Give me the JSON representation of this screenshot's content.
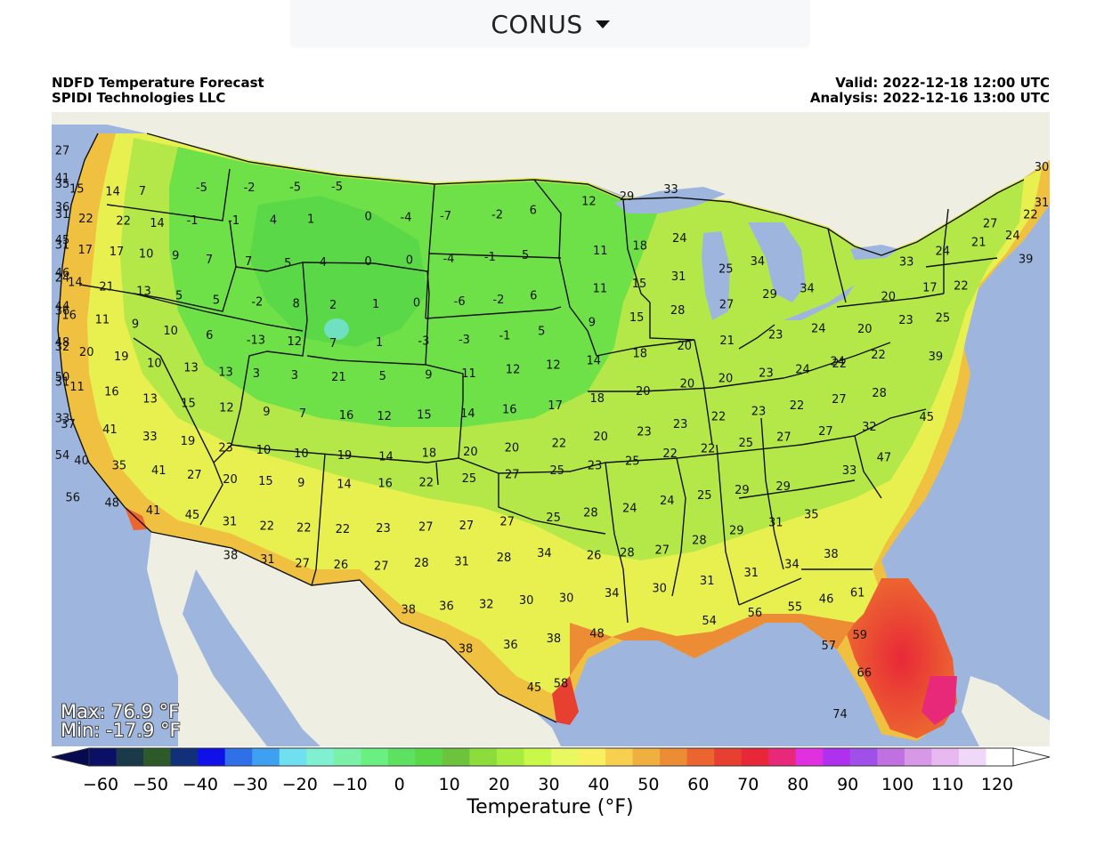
{
  "region_selector": {
    "selected": "CONUS"
  },
  "header": {
    "title": "NDFD Temperature Forecast",
    "producer": "SPIDI Technologies LLC",
    "valid": "Valid: 2022-12-18 12:00 UTC",
    "analysis": "Analysis: 2022-12-16 13:00 UTC"
  },
  "stats": {
    "max": "Max: 76.9 °F",
    "min": "Min: -17.9 °F"
  },
  "colorbar": {
    "title": "Temperature (°F)",
    "ticks": [
      "−60",
      "−50",
      "−40",
      "−30",
      "−20",
      "−10",
      "0",
      "10",
      "20",
      "30",
      "40",
      "50",
      "60",
      "70",
      "80",
      "90",
      "100",
      "110",
      "120"
    ],
    "colors": [
      "#0a1066",
      "#1a3a4a",
      "#2e5a2a",
      "#10307a",
      "#1010e8",
      "#2f6fe8",
      "#3f9ff0",
      "#6fe0f0",
      "#7ff0d0",
      "#7af0a8",
      "#6af080",
      "#5ee060",
      "#5ad848",
      "#6cc43c",
      "#8cdc3c",
      "#a8ec40",
      "#c8f848",
      "#e8f860",
      "#f8f060",
      "#f8d050",
      "#f0b040",
      "#ec8c34",
      "#ec6430",
      "#e84030",
      "#e82838",
      "#e82878",
      "#e030e0",
      "#b030f0",
      "#a050e8",
      "#c070e0",
      "#d898e8",
      "#e8b8f0",
      "#f0d8f8",
      "#ffffff"
    ],
    "under_color": "#060a50",
    "over_color": "#ffffff"
  },
  "colors": {
    "ocean": "#9eb6de",
    "land_other": "#efeee2",
    "lake": "#9eb6de"
  },
  "map_labels": [
    {
      "text": "27",
      "lon": -124.4,
      "lat": 48.9
    },
    {
      "text": "41",
      "lon": -124.0,
      "lat": 47.7
    },
    {
      "text": "35",
      "lon": -123.1,
      "lat": 47.5
    },
    {
      "text": "15",
      "lon": -121.3,
      "lat": 47.4
    },
    {
      "text": "14",
      "lon": -119.5,
      "lat": 47.4
    },
    {
      "text": "7",
      "lon": -118.0,
      "lat": 47.5
    },
    {
      "text": "-5",
      "lon": -115.0,
      "lat": 47.8
    },
    {
      "text": "-2",
      "lon": -112.6,
      "lat": 47.9
    },
    {
      "text": "-5",
      "lon": -110.3,
      "lat": 48.0
    },
    {
      "text": "-5",
      "lon": -108.2,
      "lat": 48.1
    },
    {
      "text": "36",
      "lon": -124.1,
      "lat": 46.4
    },
    {
      "text": "31",
      "lon": -122.5,
      "lat": 46.2
    },
    {
      "text": "22",
      "lon": -121.0,
      "lat": 46.1
    },
    {
      "text": "22",
      "lon": -119.1,
      "lat": 46.1
    },
    {
      "text": "14",
      "lon": -117.4,
      "lat": 46.1
    },
    {
      "text": "-1",
      "lon": -115.6,
      "lat": 46.3
    },
    {
      "text": "-1",
      "lon": -113.5,
      "lat": 46.4
    },
    {
      "text": "4",
      "lon": -111.5,
      "lat": 46.5
    },
    {
      "text": "1",
      "lon": -109.6,
      "lat": 46.6
    },
    {
      "text": "0",
      "lon": -106.7,
      "lat": 46.8
    },
    {
      "text": "-4",
      "lon": -104.8,
      "lat": 46.8
    },
    {
      "text": "-7",
      "lon": -102.8,
      "lat": 46.9
    },
    {
      "text": "-2",
      "lon": -100.2,
      "lat": 47.0
    },
    {
      "text": "6",
      "lon": -98.4,
      "lat": 47.2
    },
    {
      "text": "12",
      "lon": -95.6,
      "lat": 47.6
    },
    {
      "text": "29",
      "lon": -93.7,
      "lat": 47.8
    },
    {
      "text": "33",
      "lon": -91.5,
      "lat": 48.1
    },
    {
      "text": "27",
      "lon": -75.3,
      "lat": 46.0
    },
    {
      "text": "22",
      "lon": -73.3,
      "lat": 46.3
    },
    {
      "text": "30",
      "lon": -69.9,
      "lat": 48.2
    },
    {
      "text": "31",
      "lon": -69.8,
      "lat": 46.6
    },
    {
      "text": "45",
      "lon": -124.7,
      "lat": 44.9
    },
    {
      "text": "31",
      "lon": -123.0,
      "lat": 44.8
    },
    {
      "text": "17",
      "lon": -121.2,
      "lat": 44.7
    },
    {
      "text": "17",
      "lon": -119.6,
      "lat": 44.7
    },
    {
      "text": "10",
      "lon": -118.1,
      "lat": 44.7
    },
    {
      "text": "9",
      "lon": -116.6,
      "lat": 44.7
    },
    {
      "text": "7",
      "lon": -114.9,
      "lat": 44.6
    },
    {
      "text": "7",
      "lon": -112.9,
      "lat": 44.6
    },
    {
      "text": "5",
      "lon": -110.9,
      "lat": 44.6
    },
    {
      "text": "4",
      "lon": -109.1,
      "lat": 44.7
    },
    {
      "text": "0",
      "lon": -106.8,
      "lat": 44.8
    },
    {
      "text": "0",
      "lon": -104.7,
      "lat": 44.9
    },
    {
      "text": "-4",
      "lon": -102.7,
      "lat": 45.0
    },
    {
      "text": "-1",
      "lon": -100.6,
      "lat": 45.1
    },
    {
      "text": "5",
      "lon": -98.8,
      "lat": 45.2
    },
    {
      "text": "11",
      "lon": -95.0,
      "lat": 45.4
    },
    {
      "text": "18",
      "lon": -93.0,
      "lat": 45.6
    },
    {
      "text": "24",
      "lon": -91.0,
      "lat": 45.9
    },
    {
      "text": "24",
      "lon": -77.6,
      "lat": 44.9
    },
    {
      "text": "21",
      "lon": -75.8,
      "lat": 45.2
    },
    {
      "text": "24",
      "lon": -74.1,
      "lat": 45.4
    },
    {
      "text": "33",
      "lon": -79.4,
      "lat": 44.5
    },
    {
      "text": "46",
      "lon": -125.0,
      "lat": 43.4
    },
    {
      "text": "24",
      "lon": -123.5,
      "lat": 43.3
    },
    {
      "text": "14",
      "lon": -121.9,
      "lat": 43.2
    },
    {
      "text": "21",
      "lon": -120.3,
      "lat": 43.1
    },
    {
      "text": "13",
      "lon": -118.4,
      "lat": 43.0
    },
    {
      "text": "5",
      "lon": -116.6,
      "lat": 42.9
    },
    {
      "text": "5",
      "lon": -114.7,
      "lat": 42.8
    },
    {
      "text": "-2",
      "lon": -112.6,
      "lat": 42.8
    },
    {
      "text": "8",
      "lon": -110.6,
      "lat": 42.8
    },
    {
      "text": "2",
      "lon": -108.7,
      "lat": 42.8
    },
    {
      "text": "1",
      "lon": -106.5,
      "lat": 42.9
    },
    {
      "text": "0",
      "lon": -104.4,
      "lat": 43.0
    },
    {
      "text": "-6",
      "lon": -102.2,
      "lat": 43.1
    },
    {
      "text": "-2",
      "lon": -100.2,
      "lat": 43.2
    },
    {
      "text": "6",
      "lon": -98.4,
      "lat": 43.4
    },
    {
      "text": "11",
      "lon": -95.0,
      "lat": 43.7
    },
    {
      "text": "15",
      "lon": -93.0,
      "lat": 43.9
    },
    {
      "text": "31",
      "lon": -91.0,
      "lat": 44.2
    },
    {
      "text": "25",
      "lon": -88.6,
      "lat": 44.5
    },
    {
      "text": "34",
      "lon": -87.0,
      "lat": 44.8
    },
    {
      "text": "20",
      "lon": -80.2,
      "lat": 43.0
    },
    {
      "text": "17",
      "lon": -78.1,
      "lat": 43.3
    },
    {
      "text": "22",
      "lon": -76.5,
      "lat": 43.3
    },
    {
      "text": "39",
      "lon": -73.3,
      "lat": 44.3
    },
    {
      "text": "44",
      "lon": -125.3,
      "lat": 41.9
    },
    {
      "text": "36",
      "lon": -123.9,
      "lat": 41.8
    },
    {
      "text": "16",
      "lon": -122.4,
      "lat": 41.7
    },
    {
      "text": "11",
      "lon": -120.7,
      "lat": 41.6
    },
    {
      "text": "9",
      "lon": -119.0,
      "lat": 41.5
    },
    {
      "text": "10",
      "lon": -117.2,
      "lat": 41.3
    },
    {
      "text": "6",
      "lon": -115.2,
      "lat": 41.2
    },
    {
      "text": "-13",
      "lon": -112.8,
      "lat": 41.1
    },
    {
      "text": "12",
      "lon": -110.8,
      "lat": 41.1
    },
    {
      "text": "7",
      "lon": -108.8,
      "lat": 41.1
    },
    {
      "text": "1",
      "lon": -106.4,
      "lat": 41.2
    },
    {
      "text": "-3",
      "lon": -104.1,
      "lat": 41.3
    },
    {
      "text": "-3",
      "lon": -102.0,
      "lat": 41.4
    },
    {
      "text": "-1",
      "lon": -99.9,
      "lat": 41.6
    },
    {
      "text": "5",
      "lon": -98.0,
      "lat": 41.8
    },
    {
      "text": "9",
      "lon": -95.4,
      "lat": 42.2
    },
    {
      "text": "15",
      "lon": -93.1,
      "lat": 42.4
    },
    {
      "text": "28",
      "lon": -91.0,
      "lat": 42.7
    },
    {
      "text": "27",
      "lon": -88.5,
      "lat": 42.9
    },
    {
      "text": "29",
      "lon": -86.3,
      "lat": 43.3
    },
    {
      "text": "34",
      "lon": -84.4,
      "lat": 43.5
    },
    {
      "text": "20",
      "lon": -81.3,
      "lat": 41.6
    },
    {
      "text": "23",
      "lon": -79.2,
      "lat": 41.9
    },
    {
      "text": "25",
      "lon": -77.3,
      "lat": 41.9
    },
    {
      "text": "48",
      "lon": -125.3,
      "lat": 40.3
    },
    {
      "text": "32",
      "lon": -123.7,
      "lat": 40.2
    },
    {
      "text": "20",
      "lon": -121.7,
      "lat": 40.1
    },
    {
      "text": "19",
      "lon": -119.9,
      "lat": 40.0
    },
    {
      "text": "10",
      "lon": -118.2,
      "lat": 39.8
    },
    {
      "text": "13",
      "lon": -116.3,
      "lat": 39.7
    },
    {
      "text": "13",
      "lon": -114.5,
      "lat": 39.6
    },
    {
      "text": "3",
      "lon": -112.9,
      "lat": 39.6
    },
    {
      "text": "3",
      "lon": -110.9,
      "lat": 39.6
    },
    {
      "text": "21",
      "lon": -108.6,
      "lat": 39.6
    },
    {
      "text": "5",
      "lon": -106.3,
      "lat": 39.7
    },
    {
      "text": "9",
      "lon": -103.9,
      "lat": 39.8
    },
    {
      "text": "11",
      "lon": -101.8,
      "lat": 39.9
    },
    {
      "text": "12",
      "lon": -99.5,
      "lat": 40.1
    },
    {
      "text": "12",
      "lon": -97.4,
      "lat": 40.3
    },
    {
      "text": "14",
      "lon": -95.3,
      "lat": 40.5
    },
    {
      "text": "18",
      "lon": -92.9,
      "lat": 40.8
    },
    {
      "text": "20",
      "lon": -90.6,
      "lat": 41.1
    },
    {
      "text": "21",
      "lon": -88.4,
      "lat": 41.3
    },
    {
      "text": "23",
      "lon": -85.9,
      "lat": 41.5
    },
    {
      "text": "24",
      "lon": -83.7,
      "lat": 41.7
    },
    {
      "text": "24",
      "lon": -82.6,
      "lat": 40.2
    },
    {
      "text": "22",
      "lon": -80.5,
      "lat": 40.4
    },
    {
      "text": "39",
      "lon": -77.5,
      "lat": 40.2
    },
    {
      "text": "50",
      "lon": -125.9,
      "lat": 38.7
    },
    {
      "text": "31",
      "lon": -124.2,
      "lat": 38.6
    },
    {
      "text": "11",
      "lon": -122.4,
      "lat": 38.5
    },
    {
      "text": "16",
      "lon": -120.6,
      "lat": 38.4
    },
    {
      "text": "13",
      "lon": -118.6,
      "lat": 38.2
    },
    {
      "text": "15",
      "lon": -116.6,
      "lat": 38.1
    },
    {
      "text": "12",
      "lon": -114.6,
      "lat": 38.0
    },
    {
      "text": "9",
      "lon": -112.5,
      "lat": 37.9
    },
    {
      "text": "7",
      "lon": -110.6,
      "lat": 37.9
    },
    {
      "text": "16",
      "lon": -108.3,
      "lat": 37.9
    },
    {
      "text": "12",
      "lon": -106.3,
      "lat": 37.9
    },
    {
      "text": "15",
      "lon": -104.2,
      "lat": 38.0
    },
    {
      "text": "14",
      "lon": -101.9,
      "lat": 38.1
    },
    {
      "text": "16",
      "lon": -99.7,
      "lat": 38.3
    },
    {
      "text": "17",
      "lon": -97.3,
      "lat": 38.5
    },
    {
      "text": "18",
      "lon": -95.1,
      "lat": 38.8
    },
    {
      "text": "20",
      "lon": -92.7,
      "lat": 39.1
    },
    {
      "text": "20",
      "lon": -90.4,
      "lat": 39.4
    },
    {
      "text": "20",
      "lon": -88.4,
      "lat": 39.6
    },
    {
      "text": "23",
      "lon": -86.3,
      "lat": 39.8
    },
    {
      "text": "24",
      "lon": -84.4,
      "lat": 39.9
    },
    {
      "text": "22",
      "lon": -82.5,
      "lat": 40.1
    },
    {
      "text": "33",
      "lon": -125.2,
      "lat": 36.9
    },
    {
      "text": "37",
      "lon": -123.1,
      "lat": 36.8
    },
    {
      "text": "41",
      "lon": -120.9,
      "lat": 36.7
    },
    {
      "text": "33",
      "lon": -118.8,
      "lat": 36.5
    },
    {
      "text": "19",
      "lon": -116.8,
      "lat": 36.4
    },
    {
      "text": "23",
      "lon": -114.8,
      "lat": 36.2
    },
    {
      "text": "10",
      "lon": -112.8,
      "lat": 36.2
    },
    {
      "text": "10",
      "lon": -110.8,
      "lat": 36.1
    },
    {
      "text": "19",
      "lon": -108.5,
      "lat": 36.1
    },
    {
      "text": "14",
      "lon": -106.3,
      "lat": 36.1
    },
    {
      "text": "18",
      "lon": -104.0,
      "lat": 36.3
    },
    {
      "text": "20",
      "lon": -101.8,
      "lat": 36.4
    },
    {
      "text": "20",
      "lon": -99.6,
      "lat": 36.6
    },
    {
      "text": "22",
      "lon": -97.1,
      "lat": 36.8
    },
    {
      "text": "20",
      "lon": -94.9,
      "lat": 37.1
    },
    {
      "text": "23",
      "lon": -92.6,
      "lat": 37.3
    },
    {
      "text": "23",
      "lon": -90.7,
      "lat": 37.6
    },
    {
      "text": "22",
      "lon": -88.7,
      "lat": 37.9
    },
    {
      "text": "23",
      "lon": -86.6,
      "lat": 38.1
    },
    {
      "text": "22",
      "lon": -84.6,
      "lat": 38.3
    },
    {
      "text": "27",
      "lon": -82.4,
      "lat": 38.5
    },
    {
      "text": "28",
      "lon": -80.3,
      "lat": 38.7
    },
    {
      "text": "45",
      "lon": -77.7,
      "lat": 37.5
    },
    {
      "text": "54",
      "lon": -124.6,
      "lat": 35.3
    },
    {
      "text": "40",
      "lon": -122.6,
      "lat": 35.2
    },
    {
      "text": "35",
      "lon": -120.6,
      "lat": 35.1
    },
    {
      "text": "41",
      "lon": -118.5,
      "lat": 35.0
    },
    {
      "text": "27",
      "lon": -116.6,
      "lat": 34.9
    },
    {
      "text": "20",
      "lon": -114.7,
      "lat": 34.8
    },
    {
      "text": "15",
      "lon": -112.8,
      "lat": 34.8
    },
    {
      "text": "9",
      "lon": -110.9,
      "lat": 34.8
    },
    {
      "text": "14",
      "lon": -108.6,
      "lat": 34.8
    },
    {
      "text": "16",
      "lon": -106.4,
      "lat": 34.9
    },
    {
      "text": "22",
      "lon": -104.2,
      "lat": 35.0
    },
    {
      "text": "25",
      "lon": -101.9,
      "lat": 35.2
    },
    {
      "text": "27",
      "lon": -99.6,
      "lat": 35.4
    },
    {
      "text": "25",
      "lon": -97.2,
      "lat": 35.6
    },
    {
      "text": "23",
      "lon": -95.2,
      "lat": 35.8
    },
    {
      "text": "25",
      "lon": -93.2,
      "lat": 36.0
    },
    {
      "text": "22",
      "lon": -91.2,
      "lat": 36.3
    },
    {
      "text": "22",
      "lon": -89.2,
      "lat": 36.5
    },
    {
      "text": "25",
      "lon": -87.2,
      "lat": 36.7
    },
    {
      "text": "27",
      "lon": -85.2,
      "lat": 36.9
    },
    {
      "text": "27",
      "lon": -83.0,
      "lat": 37.1
    },
    {
      "text": "32",
      "lon": -80.7,
      "lat": 37.2
    },
    {
      "text": "47",
      "lon": -79.8,
      "lat": 35.8
    },
    {
      "text": "33",
      "lon": -81.6,
      "lat": 35.3
    },
    {
      "text": "56",
      "lon": -123.3,
      "lat": 33.5
    },
    {
      "text": "48",
      "lon": -121.2,
      "lat": 33.4
    },
    {
      "text": "41",
      "lon": -119.0,
      "lat": 33.2
    },
    {
      "text": "45",
      "lon": -116.9,
      "lat": 33.1
    },
    {
      "text": "31",
      "lon": -114.9,
      "lat": 32.9
    },
    {
      "text": "22",
      "lon": -112.9,
      "lat": 32.8
    },
    {
      "text": "22",
      "lon": -110.9,
      "lat": 32.8
    },
    {
      "text": "22",
      "lon": -108.8,
      "lat": 32.8
    },
    {
      "text": "23",
      "lon": -106.6,
      "lat": 32.9
    },
    {
      "text": "27",
      "lon": -104.3,
      "lat": 33.0
    },
    {
      "text": "27",
      "lon": -102.1,
      "lat": 33.1
    },
    {
      "text": "27",
      "lon": -99.9,
      "lat": 33.3
    },
    {
      "text": "25",
      "lon": -97.4,
      "lat": 33.5
    },
    {
      "text": "28",
      "lon": -95.4,
      "lat": 33.7
    },
    {
      "text": "24",
      "lon": -93.3,
      "lat": 33.9
    },
    {
      "text": "24",
      "lon": -91.3,
      "lat": 34.2
    },
    {
      "text": "25",
      "lon": -89.3,
      "lat": 34.4
    },
    {
      "text": "29",
      "lon": -87.3,
      "lat": 34.6
    },
    {
      "text": "29",
      "lon": -85.1,
      "lat": 34.7
    },
    {
      "text": "35",
      "lon": -83.5,
      "lat": 33.4
    },
    {
      "text": "31",
      "lon": -85.4,
      "lat": 33.1
    },
    {
      "text": "29",
      "lon": -87.5,
      "lat": 32.8
    },
    {
      "text": "28",
      "lon": -89.5,
      "lat": 32.4
    },
    {
      "text": "27",
      "lon": -91.5,
      "lat": 32.0
    },
    {
      "text": "28",
      "lon": -93.4,
      "lat": 31.9
    },
    {
      "text": "26",
      "lon": -95.2,
      "lat": 31.8
    },
    {
      "text": "34",
      "lon": -97.9,
      "lat": 31.9
    },
    {
      "text": "28",
      "lon": -100.1,
      "lat": 31.7
    },
    {
      "text": "31",
      "lon": -102.4,
      "lat": 31.5
    },
    {
      "text": "28",
      "lon": -104.6,
      "lat": 31.4
    },
    {
      "text": "27",
      "lon": -106.8,
      "lat": 31.2
    },
    {
      "text": "26",
      "lon": -109.0,
      "lat": 31.2
    },
    {
      "text": "27",
      "lon": -111.1,
      "lat": 31.2
    },
    {
      "text": "31",
      "lon": -113.0,
      "lat": 31.3
    },
    {
      "text": "38",
      "lon": -115.0,
      "lat": 31.4
    },
    {
      "text": "38",
      "lon": -82.3,
      "lat": 31.6
    },
    {
      "text": "34",
      "lon": -84.4,
      "lat": 31.2
    },
    {
      "text": "31",
      "lon": -86.6,
      "lat": 30.9
    },
    {
      "text": "31",
      "lon": -89.0,
      "lat": 30.6
    },
    {
      "text": "30",
      "lon": -91.6,
      "lat": 30.3
    },
    {
      "text": "34",
      "lon": -94.2,
      "lat": 30.1
    },
    {
      "text": "30",
      "lon": -96.7,
      "lat": 29.9
    },
    {
      "text": "30",
      "lon": -98.9,
      "lat": 29.8
    },
    {
      "text": "32",
      "lon": -101.1,
      "lat": 29.6
    },
    {
      "text": "36",
      "lon": -103.3,
      "lat": 29.5
    },
    {
      "text": "38",
      "lon": -105.4,
      "lat": 29.3
    },
    {
      "text": "46",
      "lon": -82.4,
      "lat": 29.6
    },
    {
      "text": "61",
      "lon": -80.7,
      "lat": 29.8
    },
    {
      "text": "55",
      "lon": -84.1,
      "lat": 29.3
    },
    {
      "text": "56",
      "lon": -86.3,
      "lat": 29.1
    },
    {
      "text": "54",
      "lon": -88.8,
      "lat": 28.8
    },
    {
      "text": "48",
      "lon": -95.0,
      "lat": 28.3
    },
    {
      "text": "38",
      "lon": -97.4,
      "lat": 28.1
    },
    {
      "text": "36",
      "lon": -99.8,
      "lat": 27.8
    },
    {
      "text": "38",
      "lon": -102.3,
      "lat": 27.6
    },
    {
      "text": "57",
      "lon": -82.1,
      "lat": 27.5
    },
    {
      "text": "59",
      "lon": -80.4,
      "lat": 27.9
    },
    {
      "text": "58",
      "lon": -97.0,
      "lat": 26.1
    },
    {
      "text": "45",
      "lon": -98.5,
      "lat": 25.9
    },
    {
      "text": "66",
      "lon": -80.0,
      "lat": 26.2
    },
    {
      "text": "74",
      "lon": -81.2,
      "lat": 24.4
    }
  ]
}
